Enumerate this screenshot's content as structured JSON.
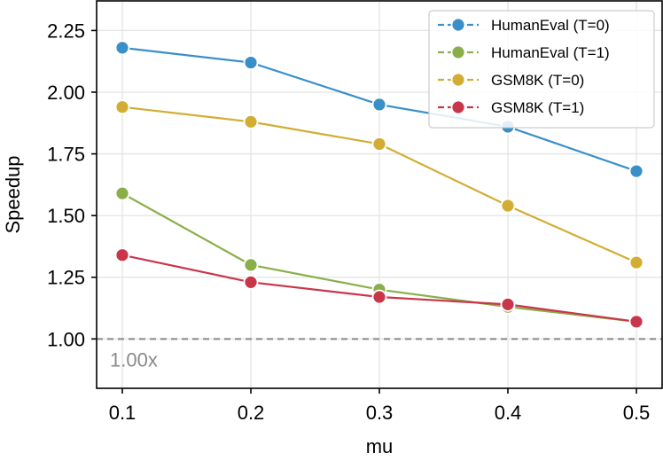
{
  "chart_data": {
    "type": "line",
    "title": "",
    "xlabel": "mu",
    "ylabel": "Speedup",
    "x": [
      0.1,
      0.2,
      0.3,
      0.4,
      0.5
    ],
    "x_tick_labels": [
      "0.1",
      "0.2",
      "0.3",
      "0.4",
      "0.5"
    ],
    "xlim": [
      0.08,
      0.52
    ],
    "ylim": [
      0.8,
      2.37
    ],
    "y_ticks": [
      1.0,
      1.25,
      1.5,
      1.75,
      2.0,
      2.25
    ],
    "y_tick_labels": [
      "1.00",
      "1.25",
      "1.50",
      "1.75",
      "2.00",
      "2.25"
    ],
    "grid": true,
    "legend_position": "top-right",
    "reference_line": {
      "y": 1.0,
      "label": "1.00x",
      "color": "#888888",
      "style": "dashed"
    },
    "series": [
      {
        "name": "HumanEval (T=0)",
        "color": "#3a8fc9",
        "values": [
          2.18,
          2.12,
          1.95,
          1.86,
          1.68
        ]
      },
      {
        "name": "HumanEval (T=1)",
        "color": "#8aaf4a",
        "values": [
          1.59,
          1.3,
          1.2,
          1.13,
          1.07
        ]
      },
      {
        "name": "GSM8K (T=0)",
        "color": "#d2ad33",
        "values": [
          1.94,
          1.88,
          1.79,
          1.54,
          1.31
        ]
      },
      {
        "name": "GSM8K (T=1)",
        "color": "#c9364a",
        "values": [
          1.34,
          1.23,
          1.17,
          1.14,
          1.07
        ]
      }
    ]
  }
}
